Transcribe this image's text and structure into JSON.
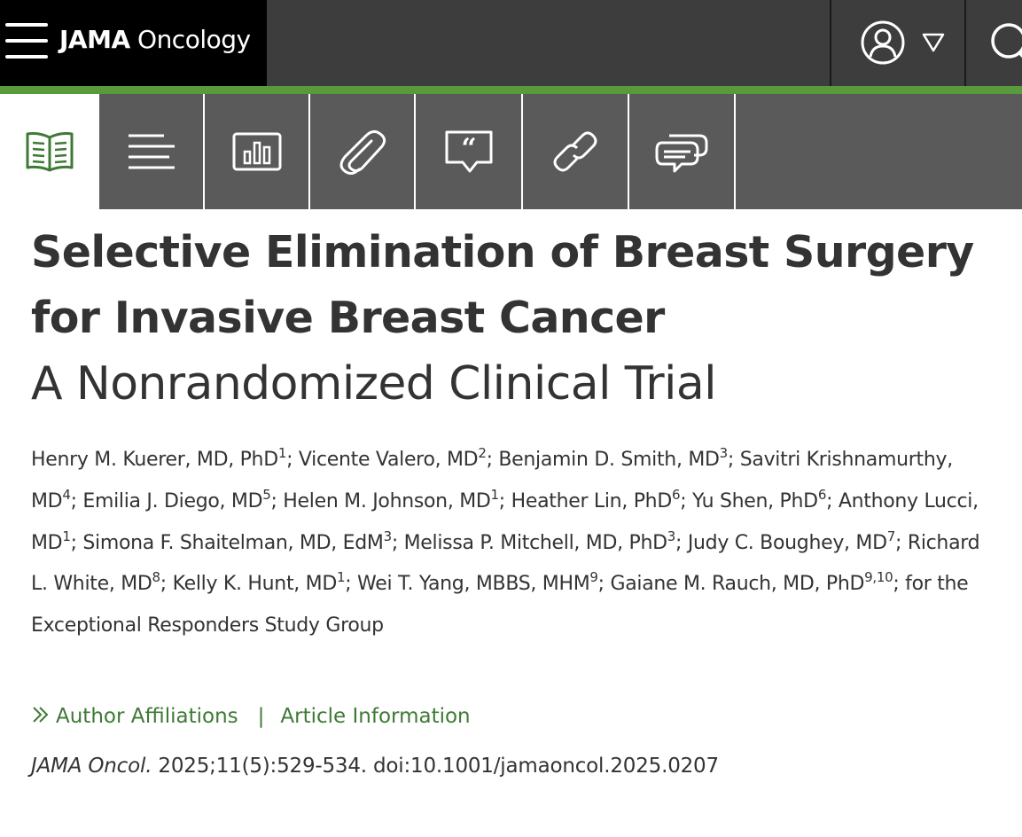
{
  "header": {
    "brand_bold": "JAMA",
    "brand_rest": " Oncology",
    "icons": [
      "hamburger-menu-icon",
      "user-icon",
      "dropdown-triangle-icon",
      "search-icon"
    ]
  },
  "toolbar": {
    "tools": [
      "full-text",
      "outline",
      "figures",
      "supplements",
      "cite",
      "links",
      "comments"
    ],
    "active": "full-text"
  },
  "article": {
    "title_line1": "Selective Elimination of Breast Surgery",
    "title_line2": "for Invasive Breast Cancer",
    "subtitle": "A Nonrandomized Clinical Trial",
    "authors": [
      {
        "text": "Henry M. Kuerer, MD, PhD",
        "sup": "1",
        "sep": "; "
      },
      {
        "text": "Vicente Valero, MD",
        "sup": "2",
        "sep": "; "
      },
      {
        "text": "Benjamin D. Smith, MD",
        "sup": "3",
        "sep": "; "
      },
      {
        "text": "Savitri Krishnamurthy, MD",
        "sup": "4",
        "sep": "; "
      },
      {
        "text": "Emilia J. Diego, MD",
        "sup": "5",
        "sep": "; "
      },
      {
        "text": "Helen M. Johnson, MD",
        "sup": "1",
        "sep": "; "
      },
      {
        "text": "Heather Lin, PhD",
        "sup": "6",
        "sep": "; "
      },
      {
        "text": "Yu Shen, PhD",
        "sup": "6",
        "sep": "; "
      },
      {
        "text": "Anthony Lucci, MD",
        "sup": "1",
        "sep": "; "
      },
      {
        "text": "Simona F. Shaitelman, MD, EdM",
        "sup": "3",
        "sep": "; "
      },
      {
        "text": "Melissa P. Mitchell, MD, PhD",
        "sup": "3",
        "sep": "; "
      },
      {
        "text": "Judy C. Boughey, MD",
        "sup": "7",
        "sep": "; "
      },
      {
        "text": "Richard L. White, MD",
        "sup": "8",
        "sep": "; "
      },
      {
        "text": "Kelly K. Hunt, MD",
        "sup": "1",
        "sep": "; "
      },
      {
        "text": "Wei T. Yang, MBBS, MHM",
        "sup": "9",
        "sep": "; "
      },
      {
        "text": "Gaiane M. Rauch, MD, PhD",
        "sup": "9,10",
        "sep": "; "
      },
      {
        "text": "for the Exceptional Responders Study Group",
        "sup": "",
        "sep": ""
      }
    ],
    "author_affiliations_label": "Author Affiliations",
    "divider": "|",
    "article_information_label": "Article Information",
    "journal_abbrev": "JAMA Oncol.",
    "citation_rest": " 2025;11(5):529-534. doi:10.1001/jamaoncol.2025.0207"
  },
  "colors": {
    "header_bg": "#3d3d3d",
    "brand_bg": "#000000",
    "accent_green": "#5a9a3e",
    "link_green": "#3d7a34",
    "toolbar_bg": "#5a5a5a",
    "text": "#333333"
  }
}
